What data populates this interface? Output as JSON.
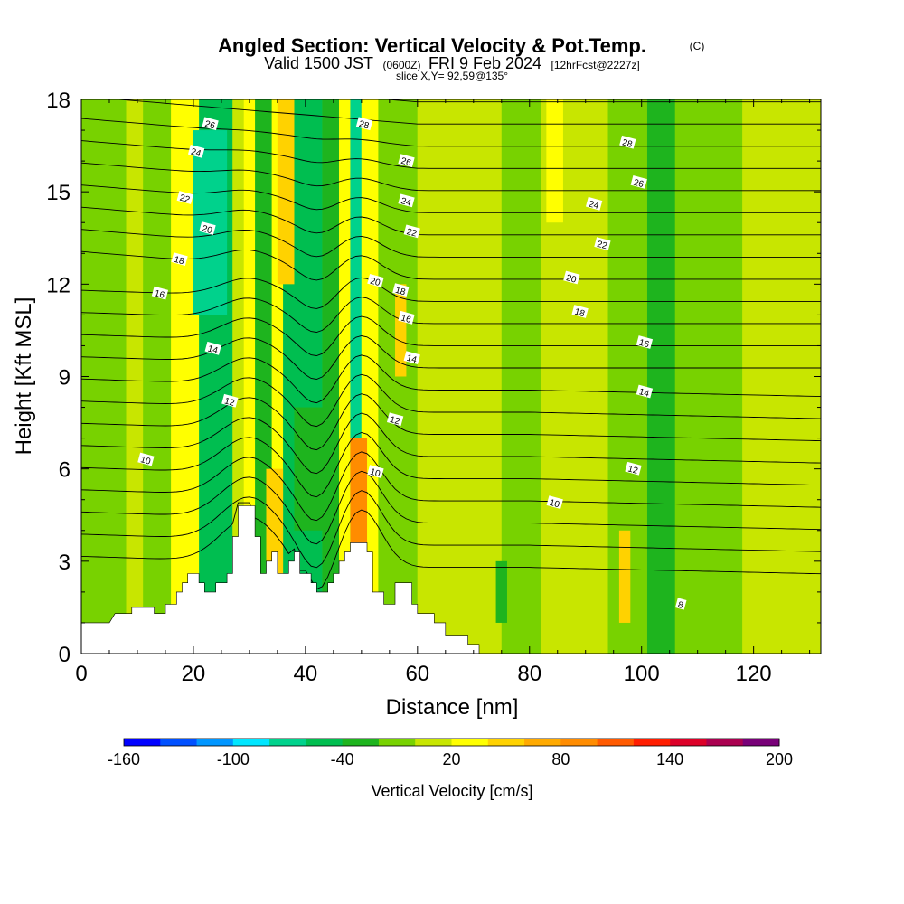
{
  "chart_data": {
    "type": "heatmap",
    "title": "Angled Section: Vertical Velocity & Pot.Temp.",
    "title_unit": "(C)",
    "subtitle_parts": [
      "Valid 1500 JST",
      "(0600Z)",
      "FRI 9 Feb 2024",
      "[12hrFcst@2227z]"
    ],
    "slice_text": "slice X,Y= 92,59@135°",
    "xlabel": "Distance [nm]",
    "ylabel": "Height [Kft MSL]",
    "xlim": [
      0,
      132
    ],
    "ylim": [
      0,
      18
    ],
    "x_ticks": [
      0,
      20,
      40,
      60,
      80,
      100,
      120
    ],
    "y_ticks": [
      0,
      3,
      6,
      9,
      12,
      15,
      18
    ],
    "colorbar": {
      "label": "Vertical Velocity [cm/s]",
      "range": [
        -160,
        200
      ],
      "tick_labels": [
        -160,
        -100,
        -40,
        20,
        80,
        140,
        200
      ],
      "colors": [
        "#0000ff",
        "#0050ff",
        "#0096ff",
        "#00e6ff",
        "#00d28c",
        "#00be50",
        "#1eb41e",
        "#78d200",
        "#c8e600",
        "#ffff00",
        "#ffd200",
        "#ffaa00",
        "#ff8c00",
        "#ff5a00",
        "#ff1e00",
        "#dc0028",
        "#aa0050",
        "#780078"
      ]
    },
    "velocity_columns": [
      {
        "x": [
          0,
          8
        ],
        "value": -10
      },
      {
        "x": [
          8,
          11
        ],
        "value": 15
      },
      {
        "x": [
          11,
          16
        ],
        "value": -20
      },
      {
        "x": [
          16,
          21
        ],
        "value": 30
      },
      {
        "x": [
          21,
          27
        ],
        "value": -60
      },
      {
        "x": [
          27,
          29
        ],
        "value": 15
      },
      {
        "x": [
          29,
          31
        ],
        "value": 35
      },
      {
        "x": [
          31,
          34
        ],
        "value": -25
      },
      {
        "x": [
          34,
          36
        ],
        "value": 25
      },
      {
        "x": [
          36,
          43
        ],
        "value": -45
      },
      {
        "x": [
          43,
          46
        ],
        "value": -25
      },
      {
        "x": [
          46,
          48
        ],
        "value": 35
      },
      {
        "x": [
          48,
          50
        ],
        "value": -75
      },
      {
        "x": [
          50,
          53
        ],
        "value": 35
      },
      {
        "x": [
          53,
          60
        ],
        "value": -10
      },
      {
        "x": [
          60,
          75
        ],
        "value": 10
      },
      {
        "x": [
          75,
          82
        ],
        "value": -5
      },
      {
        "x": [
          82,
          94
        ],
        "value": 10
      },
      {
        "x": [
          94,
          101
        ],
        "value": -5
      },
      {
        "x": [
          101,
          106
        ],
        "value": -35
      },
      {
        "x": [
          106,
          118
        ],
        "value": -8
      },
      {
        "x": [
          118,
          132
        ],
        "value": 15
      }
    ],
    "velocity_cells": [
      {
        "x": [
          33,
          36
        ],
        "z": [
          2,
          6
        ],
        "value": 45
      },
      {
        "x": [
          48,
          51
        ],
        "z": [
          3,
          7
        ],
        "value": 80
      },
      {
        "x": [
          35,
          38
        ],
        "z": [
          12,
          18
        ],
        "value": 40
      },
      {
        "x": [
          56,
          58
        ],
        "z": [
          9,
          12
        ],
        "value": 45
      },
      {
        "x": [
          20,
          26
        ],
        "z": [
          11,
          17
        ],
        "value": -75
      },
      {
        "x": [
          38,
          44
        ],
        "z": [
          4,
          8
        ],
        "value": -40
      },
      {
        "x": [
          74,
          76
        ],
        "z": [
          1,
          3
        ],
        "value": -35
      },
      {
        "x": [
          96,
          98
        ],
        "z": [
          1,
          4
        ],
        "value": 40
      },
      {
        "x": [
          83,
          86
        ],
        "z": [
          14,
          18
        ],
        "value": 25
      }
    ],
    "terrain": [
      [
        0,
        1
      ],
      [
        5,
        1
      ],
      [
        6,
        1.3
      ],
      [
        9,
        1.3
      ],
      [
        9,
        1.5
      ],
      [
        13,
        1.5
      ],
      [
        13,
        1.3
      ],
      [
        15,
        1.3
      ],
      [
        15,
        1.6
      ],
      [
        17,
        1.6
      ],
      [
        17,
        2
      ],
      [
        18,
        2
      ],
      [
        18,
        2.3
      ],
      [
        19,
        2.3
      ],
      [
        19,
        2.6
      ],
      [
        21,
        2.6
      ],
      [
        21,
        2.3
      ],
      [
        22,
        2.3
      ],
      [
        22,
        2
      ],
      [
        24,
        2
      ],
      [
        24,
        2.3
      ],
      [
        26,
        2.3
      ],
      [
        26,
        2.6
      ],
      [
        27,
        2.6
      ],
      [
        27,
        3.8
      ],
      [
        28,
        3.8
      ],
      [
        28,
        4.8
      ],
      [
        31,
        4.8
      ],
      [
        31,
        3.8
      ],
      [
        32,
        3.8
      ],
      [
        32,
        2.6
      ],
      [
        33,
        2.6
      ],
      [
        33,
        3
      ],
      [
        34,
        3
      ],
      [
        34,
        3.3
      ],
      [
        35,
        3.3
      ],
      [
        35,
        2.6
      ],
      [
        37,
        2.6
      ],
      [
        37,
        3
      ],
      [
        38,
        3
      ],
      [
        38,
        3.3
      ],
      [
        39,
        3.3
      ],
      [
        39,
        2.6
      ],
      [
        41,
        2.6
      ],
      [
        41,
        2.3
      ],
      [
        42,
        2.3
      ],
      [
        42,
        2
      ],
      [
        44,
        2
      ],
      [
        44,
        2.3
      ],
      [
        45,
        2.3
      ],
      [
        45,
        2.6
      ],
      [
        46,
        2.6
      ],
      [
        46,
        3
      ],
      [
        47,
        3
      ],
      [
        47,
        3.3
      ],
      [
        48,
        3.3
      ],
      [
        48,
        3.6
      ],
      [
        51,
        3.6
      ],
      [
        51,
        3.3
      ],
      [
        52,
        3.3
      ],
      [
        52,
        2
      ],
      [
        54,
        2
      ],
      [
        54,
        1.6
      ],
      [
        56,
        1.6
      ],
      [
        56,
        2.3
      ],
      [
        59,
        2.3
      ],
      [
        59,
        1.6
      ],
      [
        60,
        1.6
      ],
      [
        60,
        1.3
      ],
      [
        63,
        1.3
      ],
      [
        63,
        1
      ],
      [
        65,
        1
      ],
      [
        65,
        0.6
      ],
      [
        69,
        0.6
      ],
      [
        69,
        0.3
      ],
      [
        71,
        0.3
      ],
      [
        71,
        0
      ],
      [
        132,
        0
      ]
    ],
    "isotherm_labels": [
      {
        "x": 23,
        "z": 17.2,
        "text": "26"
      },
      {
        "x": 20.5,
        "z": 16.3,
        "text": "24"
      },
      {
        "x": 18.5,
        "z": 14.8,
        "text": "22"
      },
      {
        "x": 22.5,
        "z": 13.8,
        "text": "20"
      },
      {
        "x": 17.5,
        "z": 12.8,
        "text": "18"
      },
      {
        "x": 14,
        "z": 11.7,
        "text": "16"
      },
      {
        "x": 23.5,
        "z": 9.9,
        "text": "14"
      },
      {
        "x": 26.5,
        "z": 8.2,
        "text": "12"
      },
      {
        "x": 11.5,
        "z": 6.3,
        "text": "10"
      },
      {
        "x": 50.5,
        "z": 17.2,
        "text": "28"
      },
      {
        "x": 58,
        "z": 16.0,
        "text": "26"
      },
      {
        "x": 58,
        "z": 14.7,
        "text": "24"
      },
      {
        "x": 59,
        "z": 13.7,
        "text": "22"
      },
      {
        "x": 52.5,
        "z": 12.1,
        "text": "20"
      },
      {
        "x": 57,
        "z": 11.8,
        "text": "18"
      },
      {
        "x": 58,
        "z": 10.9,
        "text": "16"
      },
      {
        "x": 59,
        "z": 9.6,
        "text": "14"
      },
      {
        "x": 56,
        "z": 7.6,
        "text": "12"
      },
      {
        "x": 52.5,
        "z": 5.9,
        "text": "10"
      },
      {
        "x": 97.5,
        "z": 16.6,
        "text": "28"
      },
      {
        "x": 99.5,
        "z": 15.3,
        "text": "26"
      },
      {
        "x": 91.5,
        "z": 14.6,
        "text": "24"
      },
      {
        "x": 93,
        "z": 13.3,
        "text": "22"
      },
      {
        "x": 87.5,
        "z": 12.2,
        "text": "20"
      },
      {
        "x": 89,
        "z": 11.1,
        "text": "18"
      },
      {
        "x": 100.5,
        "z": 10.1,
        "text": "16"
      },
      {
        "x": 100.5,
        "z": 8.5,
        "text": "14"
      },
      {
        "x": 98.5,
        "z": 6.0,
        "text": "12"
      },
      {
        "x": 84.5,
        "z": 4.9,
        "text": "10"
      },
      {
        "x": 107,
        "z": 1.6,
        "text": "8"
      }
    ]
  }
}
